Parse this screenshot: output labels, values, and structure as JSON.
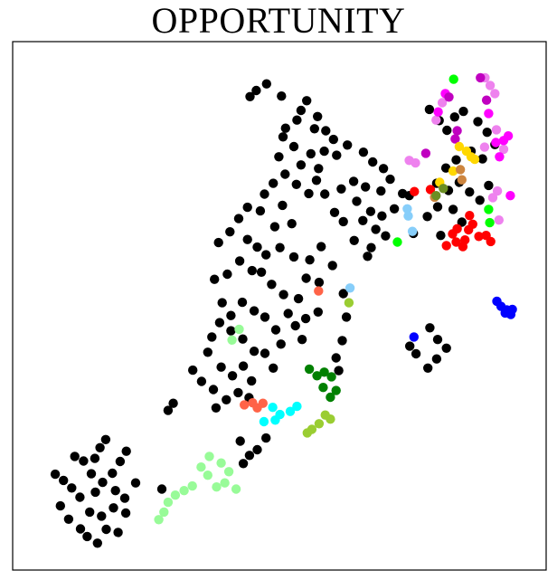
{
  "chart_data": {
    "type": "scatter",
    "title": "OPPORTUNITY",
    "xlabel": "",
    "ylabel": "",
    "xlim": [
      0,
      100
    ],
    "ylim": [
      0,
      100
    ],
    "grid": false,
    "axes_ticks": false,
    "series": [
      {
        "color": "#000000",
        "points": [
          [
            47.5,
            93.5
          ],
          [
            45.5,
            92.2
          ],
          [
            44.3,
            91.0
          ],
          [
            50.4,
            91.1
          ],
          [
            55.3,
            90.2
          ],
          [
            54.2,
            88.3
          ],
          [
            57.4,
            87.1
          ],
          [
            53.4,
            86.4
          ],
          [
            51.2,
            84.8
          ],
          [
            50.7,
            83.1
          ],
          [
            56.8,
            84.7
          ],
          [
            59.0,
            84.3
          ],
          [
            60.5,
            82.6
          ],
          [
            58.7,
            80.3
          ],
          [
            56.1,
            79.8
          ],
          [
            52.8,
            81.2
          ],
          [
            49.9,
            79.2
          ],
          [
            54.2,
            77.6
          ],
          [
            57.6,
            76.9
          ],
          [
            61.1,
            79.5
          ],
          [
            63.2,
            81.5
          ],
          [
            66.3,
            80.1
          ],
          [
            68.1,
            78.2
          ],
          [
            70.2,
            76.9
          ],
          [
            71.5,
            74.8
          ],
          [
            69.7,
            72.5
          ],
          [
            66.7,
            73.3
          ],
          [
            64.4,
            74.4
          ],
          [
            62.0,
            72.9
          ],
          [
            65.0,
            70.5
          ],
          [
            67.7,
            68.5
          ],
          [
            66.2,
            66.7
          ],
          [
            64.5,
            62.8
          ],
          [
            62.4,
            66.5
          ],
          [
            60.7,
            68.3
          ],
          [
            58.8,
            71.9
          ],
          [
            57.2,
            74.6
          ],
          [
            55.7,
            72.0
          ],
          [
            53.3,
            73.8
          ],
          [
            51.1,
            75.8
          ],
          [
            48.8,
            74.0
          ],
          [
            47.1,
            71.9
          ],
          [
            50.6,
            69.7
          ],
          [
            52.4,
            66.1
          ],
          [
            49.1,
            65.5
          ],
          [
            46.3,
            68.6
          ],
          [
            43.8,
            69.3
          ],
          [
            42.1,
            67.1
          ],
          [
            40.4,
            64.5
          ],
          [
            38.2,
            62.4
          ],
          [
            43.8,
            63.0
          ],
          [
            45.7,
            61.5
          ],
          [
            47.4,
            60.0
          ],
          [
            50.1,
            61.4
          ],
          [
            52.8,
            59.6
          ],
          [
            55.9,
            59.0
          ],
          [
            58.1,
            61.6
          ],
          [
            60.3,
            57.9
          ],
          [
            57.7,
            54.6
          ],
          [
            55.2,
            55.4
          ],
          [
            53.7,
            51.4
          ],
          [
            50.8,
            52.2
          ],
          [
            48.5,
            54.2
          ],
          [
            46.5,
            56.6
          ],
          [
            44.7,
            56.9
          ],
          [
            42.3,
            58.8
          ],
          [
            39.9,
            56.2
          ],
          [
            37.4,
            55.2
          ],
          [
            38.9,
            50.6
          ],
          [
            40.6,
            48.1
          ],
          [
            42.8,
            50.7
          ],
          [
            45.1,
            49.0
          ],
          [
            47.2,
            47.8
          ],
          [
            49.3,
            45.3
          ],
          [
            51.7,
            48.5
          ],
          [
            53.1,
            46.1
          ],
          [
            55.1,
            47.5
          ],
          [
            57.5,
            48.8
          ],
          [
            54.4,
            43.4
          ],
          [
            50.3,
            42.5
          ],
          [
            47.2,
            40.7
          ],
          [
            45.1,
            41.1
          ],
          [
            42.9,
            43.5
          ],
          [
            40.6,
            45.1
          ],
          [
            38.4,
            46.7
          ],
          [
            36.9,
            43.9
          ],
          [
            36.1,
            40.9
          ],
          [
            38.7,
            38.0
          ],
          [
            40.9,
            36.3
          ],
          [
            43.0,
            38.2
          ],
          [
            44.6,
            35.3
          ],
          [
            42.0,
            33.0
          ],
          [
            39.7,
            31.6
          ],
          [
            37.2,
            33.6
          ],
          [
            34.9,
            35.2
          ],
          [
            33.2,
            37.4
          ],
          [
            48.8,
            37.8
          ],
          [
            44.1,
            32.0
          ],
          [
            29.4,
            30.9
          ],
          [
            28.4,
            29.5
          ],
          [
            37.7,
            30.0
          ],
          [
            42.4,
            23.5
          ],
          [
            44.2,
            20.7
          ],
          [
            45.7,
            21.8
          ],
          [
            47.4,
            24.1
          ],
          [
            43.0,
            19.1
          ],
          [
            61.5,
            37.3
          ],
          [
            61.0,
            39.8
          ],
          [
            62.2,
            43.2
          ],
          [
            63.0,
            47.8
          ],
          [
            62.4,
            52.4
          ],
          [
            67.1,
            59.7
          ],
          [
            67.8,
            61.4
          ],
          [
            68.7,
            65.0
          ],
          [
            69.9,
            67.6
          ],
          [
            72.3,
            69.0
          ],
          [
            73.9,
            72.0
          ],
          [
            75.2,
            71.6
          ],
          [
            70.6,
            63.7
          ],
          [
            79.1,
            88.5
          ],
          [
            81.0,
            86.3
          ],
          [
            82.5,
            84.4
          ],
          [
            84.0,
            87.0
          ],
          [
            85.7,
            88.1
          ],
          [
            88.5,
            86.1
          ],
          [
            90.3,
            84.0
          ],
          [
            91.8,
            81.6
          ],
          [
            89.4,
            78.8
          ],
          [
            87.2,
            80.3
          ],
          [
            84.3,
            78.6
          ],
          [
            82.3,
            77.0
          ],
          [
            80.5,
            74.0
          ],
          [
            82.8,
            72.6
          ],
          [
            84.9,
            74.2
          ],
          [
            86.9,
            72.3
          ],
          [
            88.9,
            70.7
          ],
          [
            90.6,
            73.6
          ],
          [
            83.7,
            68.9
          ],
          [
            85.4,
            66.4
          ],
          [
            81.3,
            63.8
          ],
          [
            76.0,
            64.2
          ],
          [
            78.7,
            67.5
          ],
          [
            80.7,
            69.4
          ],
          [
            79.2,
            45.7
          ],
          [
            80.7,
            43.4
          ],
          [
            82.4,
            41.7
          ],
          [
            80.5,
            39.6
          ],
          [
            78.8,
            37.8
          ],
          [
            76.5,
            40.6
          ],
          [
            75.3,
            42.1
          ],
          [
            16.3,
            23.8
          ],
          [
            15.2,
            22.2
          ],
          [
            14.2,
            20.1
          ],
          [
            12.0,
            19.6
          ],
          [
            13.5,
            17.1
          ],
          [
            15.7,
            15.4
          ],
          [
            17.6,
            17.2
          ],
          [
            19.1,
            19.5
          ],
          [
            20.3,
            21.5
          ],
          [
            22.1,
            15.3
          ],
          [
            20.0,
            12.3
          ],
          [
            17.8,
            10.4
          ],
          [
            15.5,
            8.8
          ],
          [
            13.2,
            9.6
          ],
          [
            11.3,
            12.5
          ],
          [
            9.7,
            14.3
          ],
          [
            8.1,
            15.8
          ],
          [
            6.5,
            17.0
          ],
          [
            7.5,
            10.8
          ],
          [
            9.1,
            8.2
          ],
          [
            11.4,
            6.3
          ],
          [
            12.7,
            4.8
          ],
          [
            14.7,
            3.5
          ],
          [
            16.4,
            6.2
          ],
          [
            18.7,
            5.6
          ],
          [
            20.2,
            9.4
          ],
          [
            18.2,
            13.8
          ],
          [
            14.3,
            13.5
          ],
          [
            10.3,
            20.5
          ],
          [
            27.2,
            14.1
          ]
        ]
      },
      {
        "color": "#98fb98",
        "points": [
          [
            36.4,
            20.5
          ],
          [
            38.7,
            19.2
          ],
          [
            40.2,
            17.5
          ],
          [
            39.4,
            15.3
          ],
          [
            37.8,
            14.5
          ],
          [
            36.1,
            16.8
          ],
          [
            34.8,
            18.4
          ],
          [
            33.1,
            14.7
          ],
          [
            31.5,
            13.8
          ],
          [
            29.8,
            12.9
          ],
          [
            28.4,
            11.5
          ],
          [
            27.6,
            9.6
          ],
          [
            26.6,
            8.1
          ],
          [
            41.6,
            14.1
          ],
          [
            40.8,
            43.3
          ],
          [
            42.2,
            45.4
          ]
        ]
      },
      {
        "color": "#ff6347",
        "points": [
          [
            43.2,
            30.6
          ],
          [
            44.8,
            31.0
          ],
          [
            45.7,
            30.0
          ],
          [
            46.8,
            30.9
          ],
          [
            57.6,
            52.9
          ]
        ]
      },
      {
        "color": "#00ffff",
        "points": [
          [
            48.7,
            30.1
          ],
          [
            50.1,
            28.7
          ],
          [
            52.1,
            29.3
          ],
          [
            53.4,
            30.3
          ],
          [
            49.2,
            27.6
          ],
          [
            47.0,
            27.3
          ]
        ]
      },
      {
        "color": "#008000",
        "points": [
          [
            55.8,
            37.6
          ],
          [
            57.3,
            36.3
          ],
          [
            58.5,
            34.0
          ],
          [
            59.9,
            32.1
          ],
          [
            61.0,
            33.4
          ],
          [
            60.1,
            36.1
          ],
          [
            58.7,
            37.0
          ]
        ]
      },
      {
        "color": "#9acd32",
        "points": [
          [
            58.9,
            28.6
          ],
          [
            59.9,
            27.8
          ],
          [
            57.7,
            26.9
          ],
          [
            56.3,
            25.8
          ],
          [
            55.4,
            25.1
          ],
          [
            63.5,
            50.6
          ]
        ]
      },
      {
        "color": "#87cefa",
        "points": [
          [
            75.0,
            67.6
          ],
          [
            74.8,
            69.0
          ],
          [
            75.8,
            64.6
          ],
          [
            63.7,
            53.5
          ]
        ]
      },
      {
        "color": "#00ff00",
        "points": [
          [
            83.8,
            94.4
          ],
          [
            90.6,
            68.9
          ],
          [
            90.8,
            66.3
          ],
          [
            72.9,
            62.5
          ]
        ]
      },
      {
        "color": "#ff0000",
        "points": [
          [
            76.2,
            72.4
          ],
          [
            79.3,
            72.8
          ],
          [
            83.6,
            64.1
          ],
          [
            84.5,
            65.1
          ],
          [
            86.7,
            64.9
          ],
          [
            87.5,
            66.0
          ],
          [
            84.3,
            62.5
          ],
          [
            85.6,
            61.6
          ],
          [
            82.4,
            61.8
          ],
          [
            86.0,
            62.9
          ],
          [
            88.7,
            63.6
          ],
          [
            90.1,
            63.8
          ],
          [
            91.0,
            62.6
          ],
          [
            86.9,
            67.7
          ]
        ]
      },
      {
        "color": "#ee82ee",
        "points": [
          [
            89.9,
            94.7
          ],
          [
            90.9,
            93.2
          ],
          [
            91.8,
            91.6
          ],
          [
            81.6,
            89.8
          ],
          [
            75.2,
            78.5
          ],
          [
            76.4,
            78.0
          ],
          [
            80.4,
            86.4
          ],
          [
            89.8,
            81.1
          ],
          [
            92.1,
            84.5
          ],
          [
            93.5,
            80.7
          ],
          [
            92.3,
            72.5
          ],
          [
            91.4,
            71.2
          ],
          [
            92.6,
            66.8
          ]
        ]
      },
      {
        "color": "#ff00ff",
        "points": [
          [
            82.2,
            91.6
          ],
          [
            80.8,
            88.0
          ],
          [
            90.6,
            87.7
          ],
          [
            92.0,
            82.0
          ],
          [
            92.7,
            79.2
          ],
          [
            93.5,
            82.4
          ],
          [
            94.4,
            83.3
          ],
          [
            94.8,
            71.6
          ]
        ]
      },
      {
        "color": "#c000c0",
        "points": [
          [
            82.9,
            90.9
          ],
          [
            84.1,
            82.7
          ],
          [
            84.5,
            84.3
          ],
          [
            89.0,
            94.7
          ],
          [
            90.2,
            90.3
          ],
          [
            78.4,
            79.9
          ]
        ]
      },
      {
        "color": "#ffd700",
        "points": [
          [
            81.1,
            74.2
          ],
          [
            84.9,
            81.2
          ],
          [
            86.3,
            80.3
          ],
          [
            87.2,
            79.2
          ],
          [
            87.9,
            78.7
          ],
          [
            83.7,
            76.4
          ]
        ]
      },
      {
        "color": "#cd853f",
        "points": [
          [
            80.1,
            71.3
          ],
          [
            85.1,
            76.7
          ],
          [
            85.4,
            74.7
          ]
        ]
      },
      {
        "color": "#6b8e23",
        "points": [
          [
            81.8,
            73.0
          ],
          [
            80.4,
            71.6
          ]
        ]
      },
      {
        "color": "#0000ff",
        "points": [
          [
            92.2,
            50.9
          ],
          [
            93.0,
            49.9
          ],
          [
            94.1,
            49.2
          ],
          [
            95.2,
            49.3
          ],
          [
            93.8,
            48.6
          ],
          [
            94.9,
            48.3
          ],
          [
            76.1,
            43.9
          ]
        ]
      }
    ]
  }
}
